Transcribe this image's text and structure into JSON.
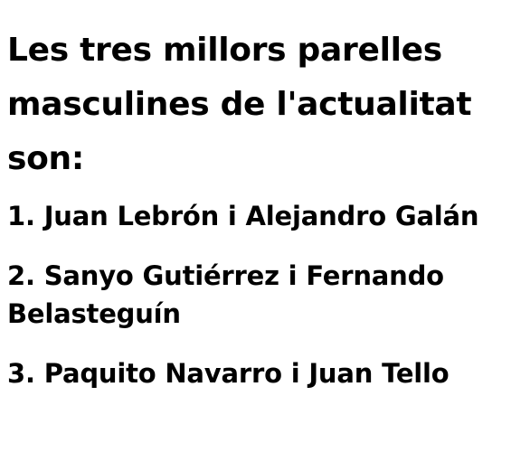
{
  "heading": "Les tres millors parelles masculines de l'actualitat son:",
  "items": [
    "1. Juan Lebrón i Alejandro Galán",
    "2. Sanyo Gutiérrez i Fernando Belasteguín",
    "3. Paquito Navarro i Juan Tello"
  ]
}
